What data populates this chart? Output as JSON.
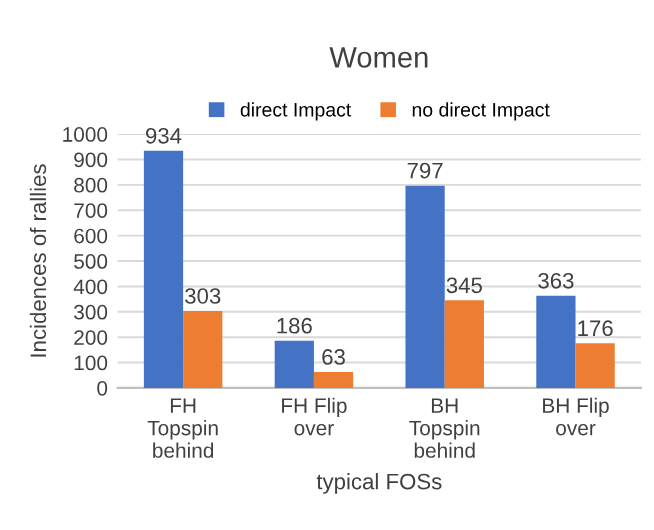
{
  "chart_data": {
    "type": "bar",
    "title": "Women",
    "xlabel": "typical FOSs",
    "ylabel": "Incidences of rallies",
    "categories": [
      "FH\nTopspin\nbehind",
      "FH Flip\nover",
      "BH\nTopspin\nbehind",
      "BH Flip\nover"
    ],
    "series": [
      {
        "name": "direct Impact",
        "color": "#4472c4",
        "values": [
          934,
          186,
          797,
          363
        ]
      },
      {
        "name": "no direct Impact",
        "color": "#ed7d31",
        "values": [
          303,
          63,
          345,
          176
        ]
      }
    ],
    "ylim": [
      0,
      1000
    ],
    "yticks": [
      0,
      100,
      200,
      300,
      400,
      500,
      600,
      700,
      800,
      900,
      1000
    ],
    "grid": "y",
    "legend": "top",
    "data_labels": true
  }
}
